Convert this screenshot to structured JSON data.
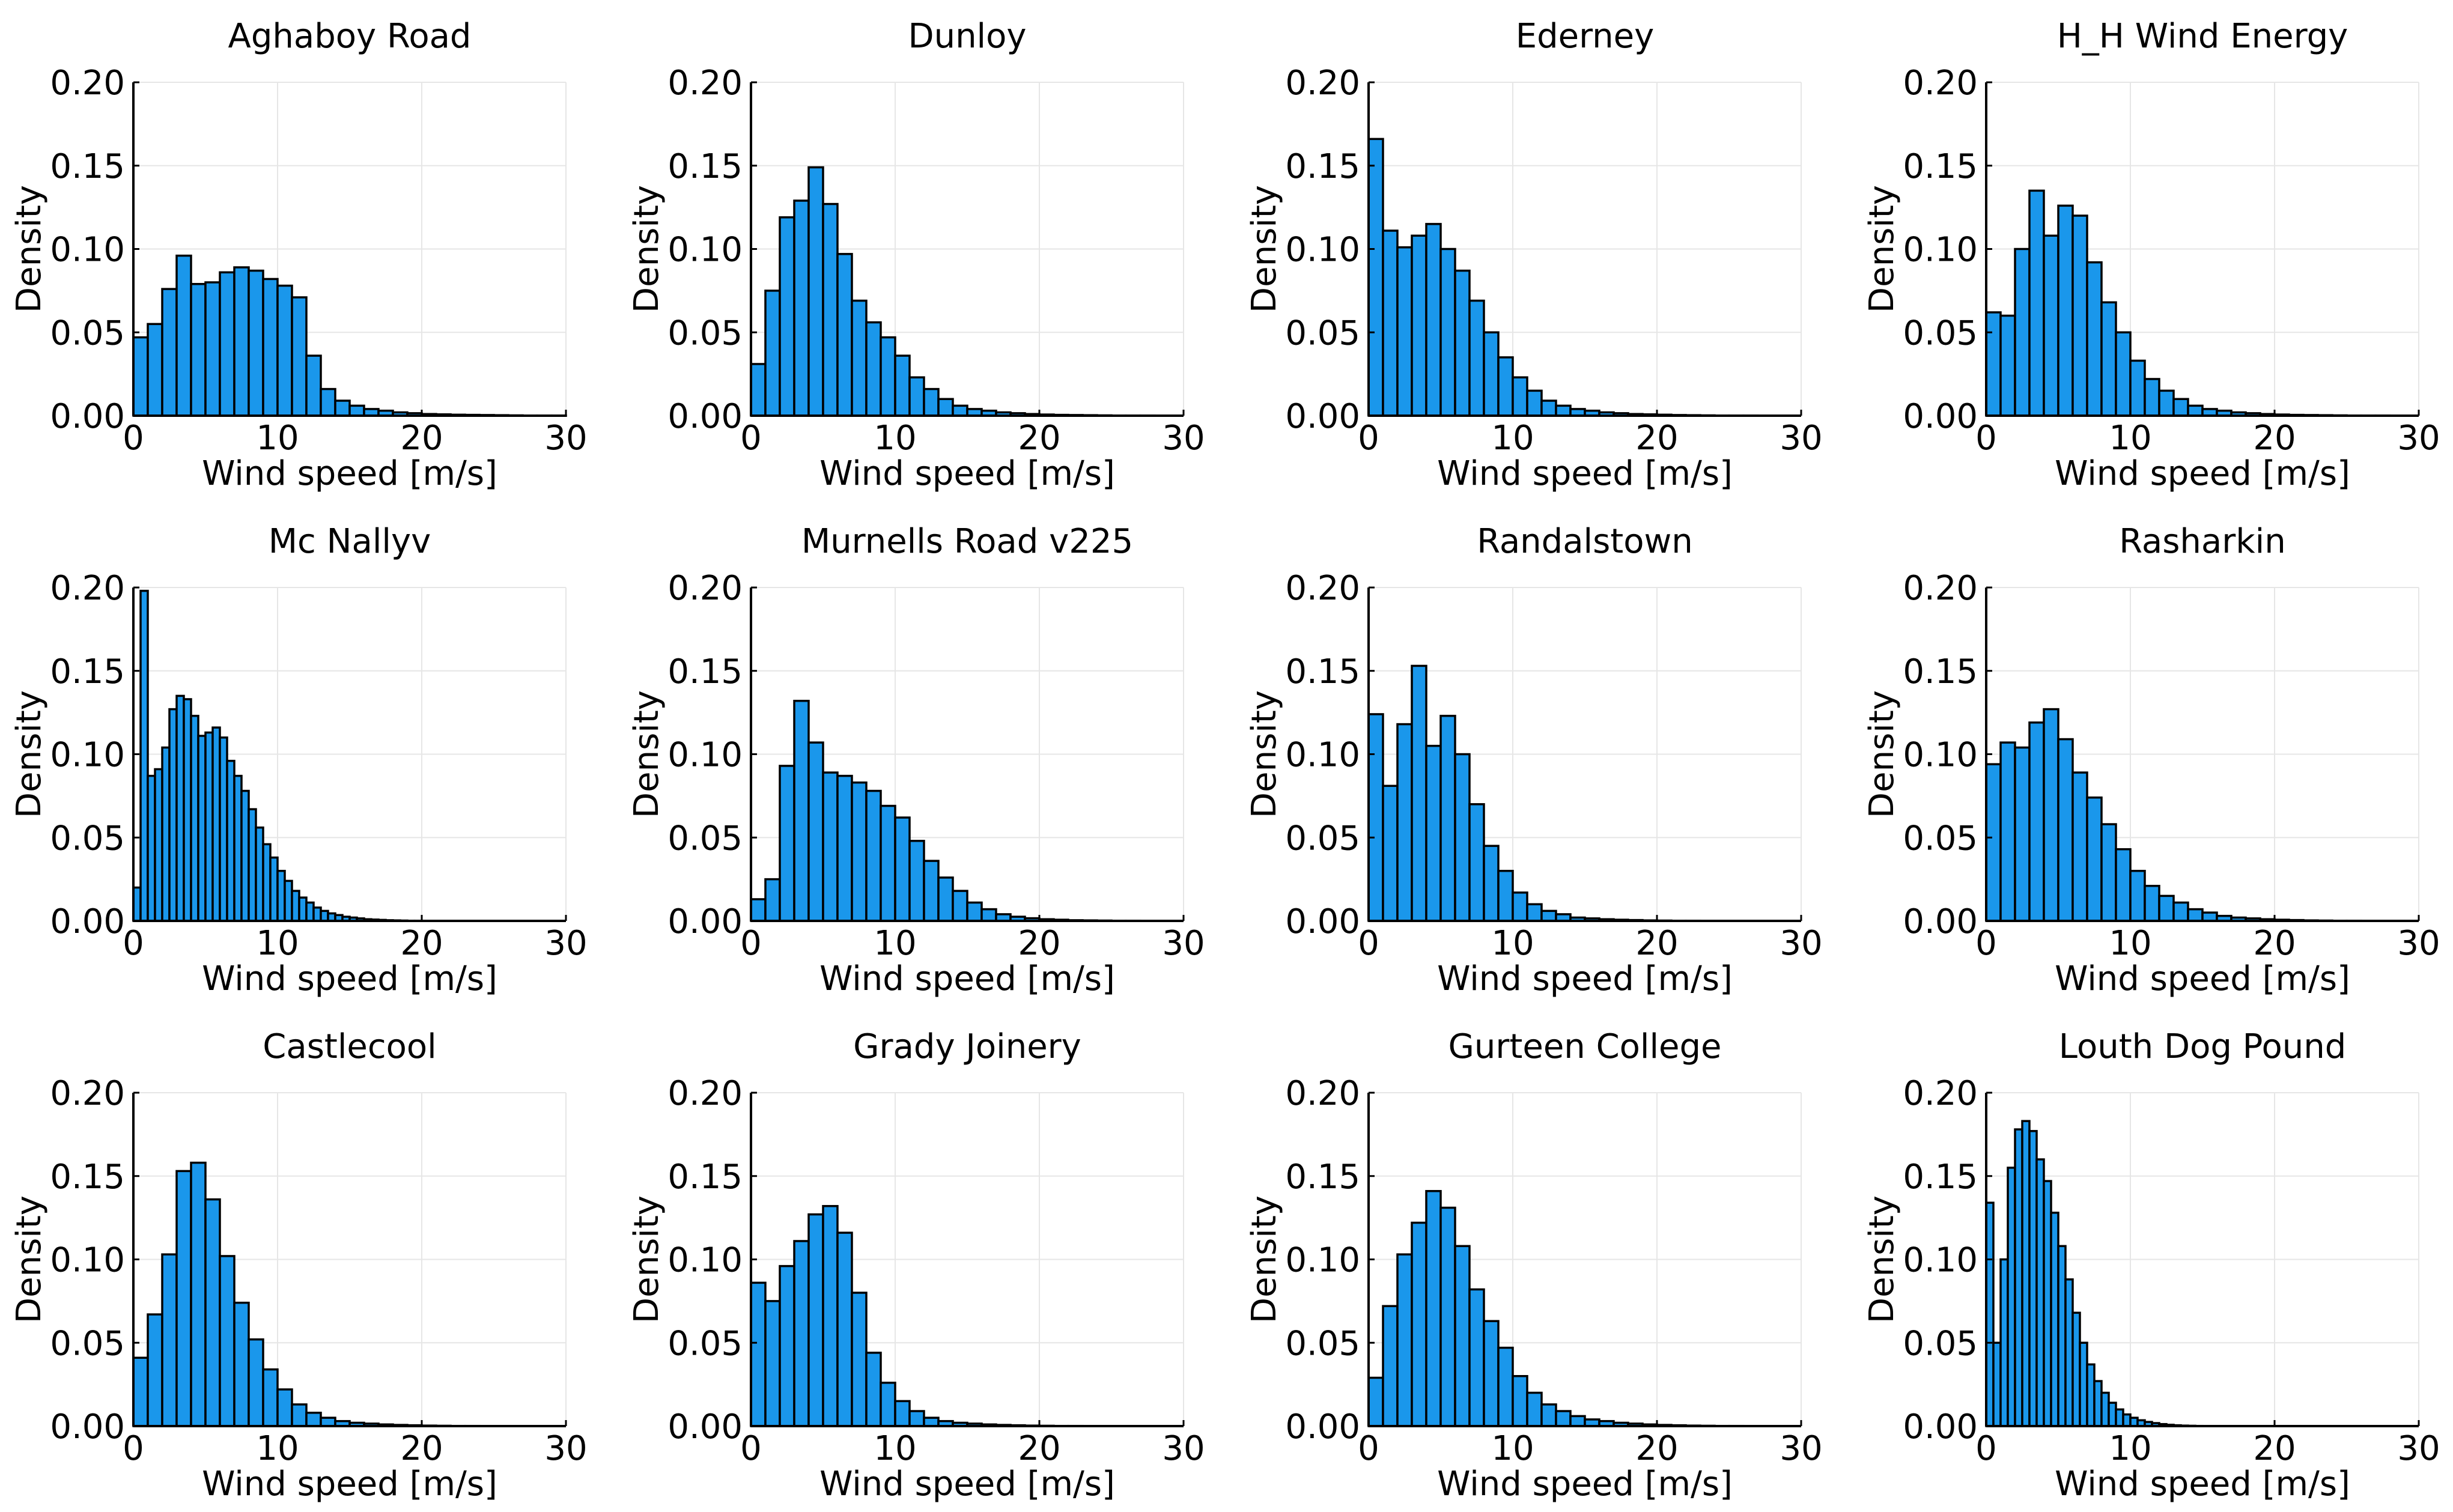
{
  "figure": {
    "bar_color": "#1a97eb",
    "edge_color": "#000000",
    "grid_color": "#e6e6e6",
    "background": "#ffffff"
  },
  "chart_data": [
    {
      "type": "bar",
      "title": "Aghaboy Road",
      "xlabel": "Wind speed [m/s]",
      "ylabel": "Density",
      "xlim": [
        0,
        30
      ],
      "ylim": [
        0,
        0.2
      ],
      "xticks": [
        "0",
        "10",
        "20",
        "30"
      ],
      "yticks": [
        "0.00",
        "0.05",
        "0.10",
        "0.15",
        "0.20"
      ],
      "grid": true,
      "bin_width": 1,
      "values": [
        0.047,
        0.055,
        0.076,
        0.096,
        0.079,
        0.08,
        0.086,
        0.089,
        0.087,
        0.082,
        0.078,
        0.071,
        0.036,
        0.016,
        0.009,
        0.006,
        0.004,
        0.003,
        0.002,
        0.0015,
        0.001,
        0.0008,
        0.0006,
        0.0005,
        0.0004,
        0.0003,
        0.0002,
        0.0001,
        0.0001,
        0.0001
      ]
    },
    {
      "type": "bar",
      "title": "Dunloy",
      "xlabel": "Wind speed [m/s]",
      "ylabel": "Density",
      "xlim": [
        0,
        30
      ],
      "ylim": [
        0,
        0.2
      ],
      "xticks": [
        "0",
        "10",
        "20",
        "30"
      ],
      "yticks": [
        "0.00",
        "0.05",
        "0.10",
        "0.15",
        "0.20"
      ],
      "grid": true,
      "bin_width": 1,
      "values": [
        0.031,
        0.075,
        0.119,
        0.129,
        0.149,
        0.127,
        0.097,
        0.069,
        0.056,
        0.047,
        0.036,
        0.023,
        0.016,
        0.01,
        0.006,
        0.004,
        0.003,
        0.002,
        0.0015,
        0.001,
        0.0007,
        0.0005,
        0.0004,
        0.0003,
        0.0002,
        0.0001,
        0.0001,
        0.0001,
        0,
        0
      ]
    },
    {
      "type": "bar",
      "title": "Ederney",
      "xlabel": "Wind speed [m/s]",
      "ylabel": "Density",
      "xlim": [
        0,
        30
      ],
      "ylim": [
        0,
        0.2
      ],
      "xticks": [
        "0",
        "10",
        "20",
        "30"
      ],
      "yticks": [
        "0.00",
        "0.05",
        "0.10",
        "0.15",
        "0.20"
      ],
      "grid": true,
      "bin_width": 1,
      "values": [
        0.166,
        0.111,
        0.101,
        0.108,
        0.115,
        0.1,
        0.087,
        0.069,
        0.05,
        0.035,
        0.023,
        0.015,
        0.009,
        0.006,
        0.004,
        0.003,
        0.002,
        0.0015,
        0.001,
        0.0008,
        0.0006,
        0.0004,
        0.0003,
        0.0002,
        0.0001,
        0.0001,
        0.0001,
        0,
        0,
        0
      ]
    },
    {
      "type": "bar",
      "title": "H_H Wind Energy",
      "xlabel": "Wind speed [m/s]",
      "ylabel": "Density",
      "xlim": [
        0,
        30
      ],
      "ylim": [
        0,
        0.2
      ],
      "xticks": [
        "0",
        "10",
        "20",
        "30"
      ],
      "yticks": [
        "0.00",
        "0.05",
        "0.10",
        "0.15",
        "0.20"
      ],
      "grid": true,
      "bin_width": 1,
      "values": [
        0.062,
        0.06,
        0.1,
        0.135,
        0.108,
        0.126,
        0.12,
        0.092,
        0.068,
        0.05,
        0.033,
        0.022,
        0.015,
        0.01,
        0.006,
        0.004,
        0.003,
        0.002,
        0.0015,
        0.001,
        0.0007,
        0.0005,
        0.0004,
        0.0003,
        0.0002,
        0.0001,
        0.0001,
        0.0001,
        0,
        0
      ]
    },
    {
      "type": "bar",
      "title": "Mc Nallyv",
      "xlabel": "Wind speed [m/s]",
      "ylabel": "Density",
      "xlim": [
        0,
        30
      ],
      "ylim": [
        0,
        0.2
      ],
      "xticks": [
        "0",
        "10",
        "20",
        "30"
      ],
      "yticks": [
        "0.00",
        "0.05",
        "0.10",
        "0.15",
        "0.20"
      ],
      "grid": true,
      "bin_width": 0.5,
      "values": [
        0.02,
        0.198,
        0.087,
        0.091,
        0.104,
        0.127,
        0.135,
        0.133,
        0.123,
        0.111,
        0.113,
        0.116,
        0.11,
        0.096,
        0.087,
        0.078,
        0.067,
        0.056,
        0.046,
        0.038,
        0.03,
        0.024,
        0.018,
        0.014,
        0.011,
        0.008,
        0.006,
        0.0045,
        0.0035,
        0.0025,
        0.002,
        0.0015,
        0.001,
        0.0008,
        0.0006,
        0.0004,
        0.0003,
        0.0002,
        0.0001,
        0.0001
      ]
    },
    {
      "type": "bar",
      "title": "Murnells Road v225",
      "xlabel": "Wind speed [m/s]",
      "ylabel": "Density",
      "xlim": [
        0,
        30
      ],
      "ylim": [
        0,
        0.2
      ],
      "xticks": [
        "0",
        "10",
        "20",
        "30"
      ],
      "yticks": [
        "0.00",
        "0.05",
        "0.10",
        "0.15",
        "0.20"
      ],
      "grid": true,
      "bin_width": 1,
      "values": [
        0.013,
        0.025,
        0.093,
        0.132,
        0.107,
        0.089,
        0.087,
        0.083,
        0.078,
        0.069,
        0.062,
        0.048,
        0.036,
        0.026,
        0.018,
        0.011,
        0.007,
        0.004,
        0.0025,
        0.0016,
        0.001,
        0.0007,
        0.0004,
        0.0003,
        0.0002,
        0.0001,
        0.0001,
        0,
        0,
        0
      ]
    },
    {
      "type": "bar",
      "title": "Randalstown",
      "xlabel": "Wind speed [m/s]",
      "ylabel": "Density",
      "xlim": [
        0,
        30
      ],
      "ylim": [
        0,
        0.2
      ],
      "xticks": [
        "0",
        "10",
        "20",
        "30"
      ],
      "yticks": [
        "0.00",
        "0.05",
        "0.10",
        "0.15",
        "0.20"
      ],
      "grid": true,
      "bin_width": 1,
      "values": [
        0.124,
        0.081,
        0.118,
        0.153,
        0.105,
        0.123,
        0.1,
        0.07,
        0.045,
        0.03,
        0.017,
        0.01,
        0.006,
        0.004,
        0.002,
        0.0015,
        0.001,
        0.0007,
        0.0005,
        0.0003,
        0.0002,
        0.0001,
        0.0001,
        0,
        0,
        0,
        0,
        0,
        0,
        0
      ]
    },
    {
      "type": "bar",
      "title": "Rasharkin",
      "xlabel": "Wind speed [m/s]",
      "ylabel": "Density",
      "xlim": [
        0,
        30
      ],
      "ylim": [
        0,
        0.2
      ],
      "xticks": [
        "0",
        "10",
        "20",
        "30"
      ],
      "yticks": [
        "0.00",
        "0.05",
        "0.10",
        "0.15",
        "0.20"
      ],
      "grid": true,
      "bin_width": 1,
      "values": [
        0.094,
        0.107,
        0.104,
        0.119,
        0.127,
        0.109,
        0.089,
        0.074,
        0.058,
        0.043,
        0.03,
        0.021,
        0.015,
        0.011,
        0.007,
        0.005,
        0.003,
        0.002,
        0.0015,
        0.001,
        0.0007,
        0.0005,
        0.0003,
        0.0002,
        0.0001,
        0.0001,
        0,
        0,
        0,
        0
      ]
    },
    {
      "type": "bar",
      "title": "Castlecool",
      "xlabel": "Wind speed [m/s]",
      "ylabel": "Density",
      "xlim": [
        0,
        30
      ],
      "ylim": [
        0,
        0.2
      ],
      "xticks": [
        "0",
        "10",
        "20",
        "30"
      ],
      "yticks": [
        "0.00",
        "0.05",
        "0.10",
        "0.15",
        "0.20"
      ],
      "grid": true,
      "bin_width": 1,
      "values": [
        0.041,
        0.067,
        0.103,
        0.153,
        0.158,
        0.136,
        0.102,
        0.074,
        0.052,
        0.034,
        0.022,
        0.013,
        0.008,
        0.005,
        0.003,
        0.002,
        0.0015,
        0.001,
        0.0007,
        0.0005,
        0.0003,
        0.0002,
        0.0001,
        0.0001,
        0,
        0,
        0,
        0,
        0,
        0
      ]
    },
    {
      "type": "bar",
      "title": "Grady Joinery",
      "xlabel": "Wind speed [m/s]",
      "ylabel": "Density",
      "xlim": [
        0,
        30
      ],
      "ylim": [
        0,
        0.2
      ],
      "xticks": [
        "0",
        "10",
        "20",
        "30"
      ],
      "yticks": [
        "0.00",
        "0.05",
        "0.10",
        "0.15",
        "0.20"
      ],
      "grid": true,
      "bin_width": 1,
      "values": [
        0.086,
        0.075,
        0.096,
        0.111,
        0.127,
        0.132,
        0.116,
        0.08,
        0.044,
        0.026,
        0.015,
        0.009,
        0.005,
        0.003,
        0.002,
        0.0015,
        0.001,
        0.0007,
        0.0005,
        0.0003,
        0.0002,
        0.0001,
        0.0001,
        0,
        0,
        0,
        0,
        0,
        0,
        0
      ]
    },
    {
      "type": "bar",
      "title": "Gurteen College",
      "xlabel": "Wind speed [m/s]",
      "ylabel": "Density",
      "xlim": [
        0,
        30
      ],
      "ylim": [
        0,
        0.2
      ],
      "xticks": [
        "0",
        "10",
        "20",
        "30"
      ],
      "yticks": [
        "0.00",
        "0.05",
        "0.10",
        "0.15",
        "0.20"
      ],
      "grid": true,
      "bin_width": 1,
      "values": [
        0.029,
        0.072,
        0.103,
        0.122,
        0.141,
        0.131,
        0.108,
        0.082,
        0.063,
        0.047,
        0.03,
        0.02,
        0.013,
        0.009,
        0.006,
        0.004,
        0.003,
        0.002,
        0.0015,
        0.001,
        0.0007,
        0.0005,
        0.0003,
        0.0002,
        0.0001,
        0.0001,
        0,
        0,
        0,
        0
      ]
    },
    {
      "type": "bar",
      "title": "Louth Dog Pound",
      "xlabel": "Wind speed [m/s]",
      "ylabel": "Density",
      "xlim": [
        0,
        30
      ],
      "ylim": [
        0,
        0.2
      ],
      "xticks": [
        "0",
        "10",
        "20",
        "30"
      ],
      "yticks": [
        "0.00",
        "0.05",
        "0.10",
        "0.15",
        "0.20"
      ],
      "grid": true,
      "bin_width": 0.5,
      "values": [
        0.134,
        0.05,
        0.1,
        0.155,
        0.178,
        0.183,
        0.177,
        0.16,
        0.147,
        0.128,
        0.108,
        0.088,
        0.068,
        0.05,
        0.037,
        0.027,
        0.02,
        0.014,
        0.01,
        0.007,
        0.005,
        0.0035,
        0.0025,
        0.0018,
        0.0012,
        0.0008,
        0.0005,
        0.0003,
        0.0002,
        0.0001
      ]
    }
  ]
}
